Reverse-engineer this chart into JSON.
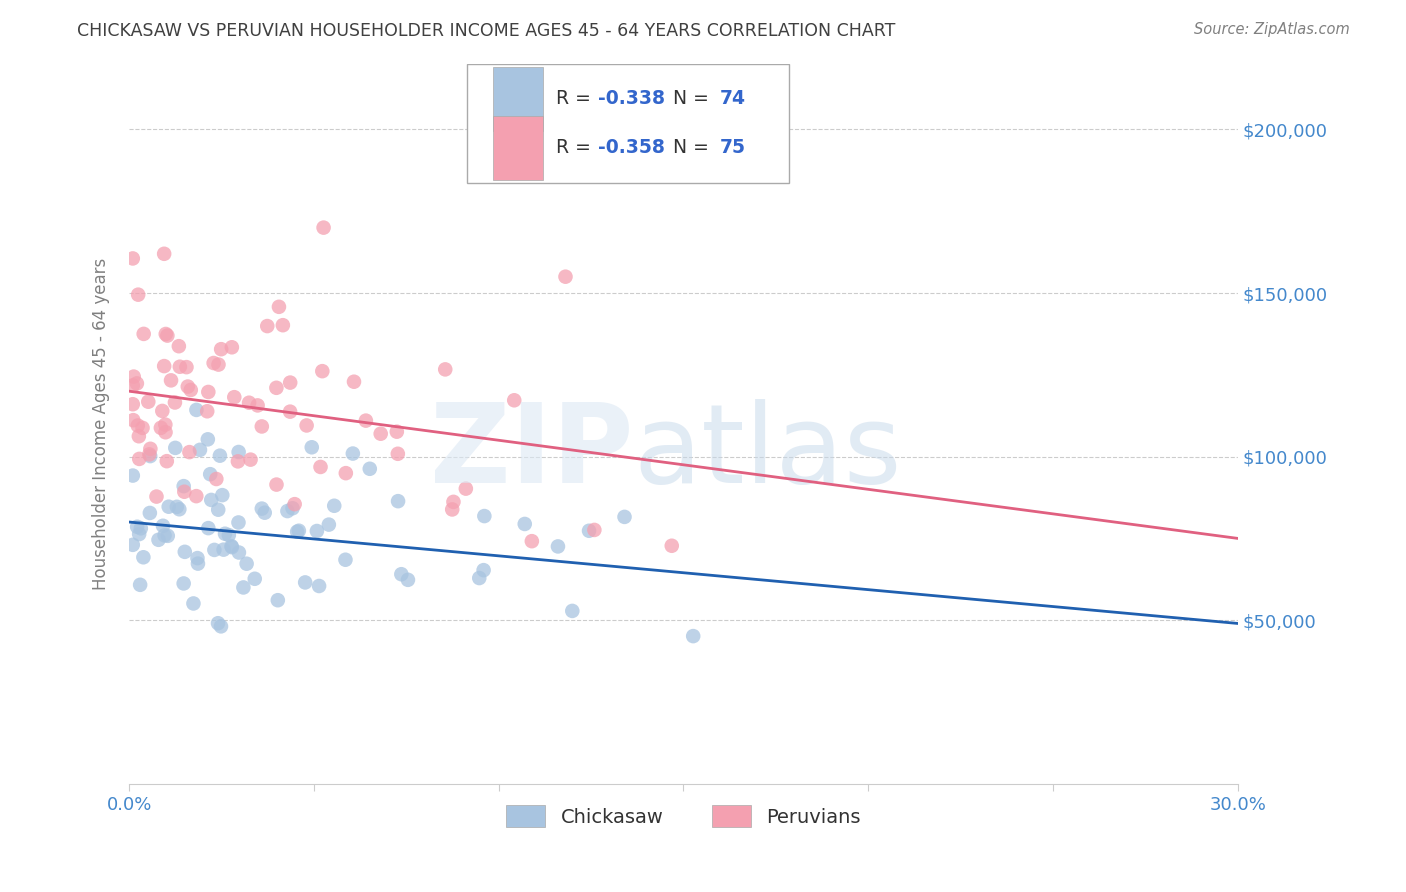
{
  "title": "CHICKASAW VS PERUVIAN HOUSEHOLDER INCOME AGES 45 - 64 YEARS CORRELATION CHART",
  "source": "Source: ZipAtlas.com",
  "ylabel": "Householder Income Ages 45 - 64 years",
  "x_min": 0.0,
  "x_max": 0.3,
  "y_min": 0,
  "y_max": 220000,
  "x_ticks": [
    0.0,
    0.05,
    0.1,
    0.15,
    0.2,
    0.25,
    0.3
  ],
  "x_tick_labels": [
    "0.0%",
    "",
    "",
    "",
    "",
    "",
    "30.0%"
  ],
  "y_ticks": [
    50000,
    100000,
    150000,
    200000
  ],
  "y_tick_labels": [
    "$50,000",
    "$100,000",
    "$150,000",
    "$200,000"
  ],
  "r_chickasaw": "-0.338",
  "n_chickasaw": "74",
  "r_peruvian": "-0.358",
  "n_peruvian": "75",
  "chickasaw_color": "#a8c4e0",
  "peruvian_color": "#f4a0b0",
  "chickasaw_line_color": "#2060b0",
  "peruvian_line_color": "#e06080",
  "background_color": "#ffffff",
  "grid_color": "#cccccc",
  "title_color": "#404040",
  "source_color": "#808080",
  "axis_label_color": "#808080",
  "tick_color": "#4488cc",
  "chick_line_x0": 0.0,
  "chick_line_y0": 80000,
  "chick_line_x1": 0.3,
  "chick_line_y1": 49000,
  "peru_line_x0": 0.0,
  "peru_line_y0": 120000,
  "peru_line_x1": 0.3,
  "peru_line_y1": 75000
}
